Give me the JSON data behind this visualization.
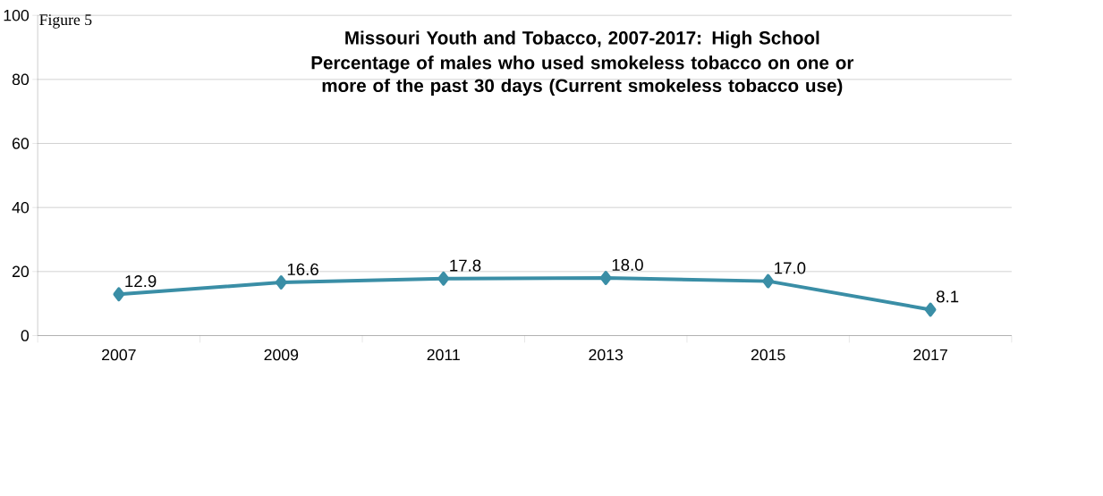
{
  "chart_data": {
    "type": "line",
    "title": "Missouri Youth and Tobacco, 2007-2017: High School",
    "subtitle": "Percentage of males who used smokeless tobacco on one or more of the past 30 days (Current smokeless tobacco use)",
    "annotations": [
      "Figure 5"
    ],
    "categories": [
      "2007",
      "2009",
      "2011",
      "2013",
      "2015",
      "2017"
    ],
    "series": [
      {
        "color": "#3a8ea6",
        "values": [
          12.9,
          16.6,
          17.8,
          18.0,
          17.0,
          8.1
        ],
        "value_labels": [
          "12.9",
          "16.6",
          "17.8",
          "18.0",
          "17.0",
          "8.1"
        ]
      }
    ],
    "ylim": [
      0,
      100
    ],
    "yticks": [
      0,
      20,
      40,
      60,
      80,
      100
    ],
    "grid": "y",
    "marker": "diamond",
    "line_style": "solid"
  }
}
